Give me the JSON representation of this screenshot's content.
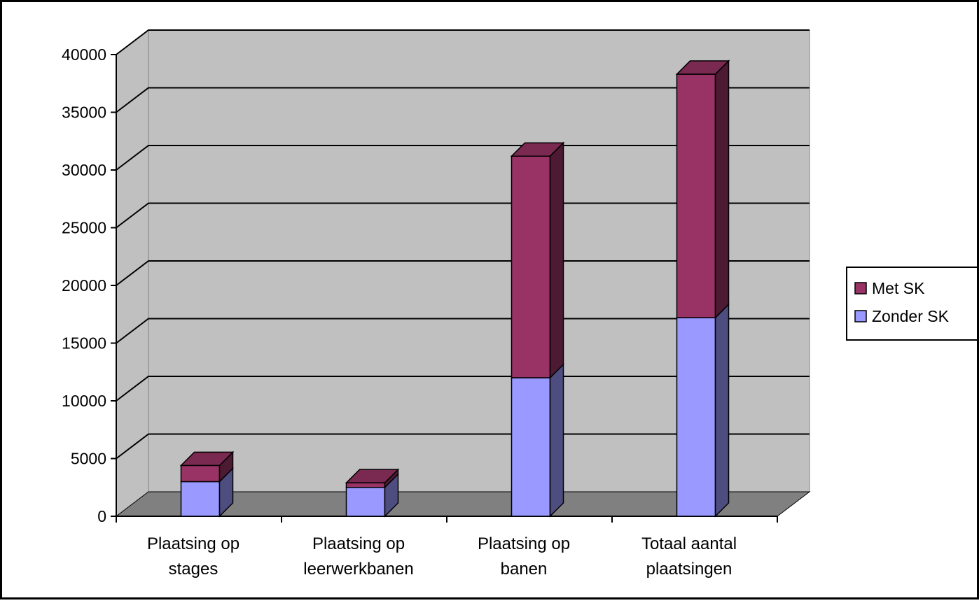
{
  "chart_data": {
    "type": "bar",
    "stacked": true,
    "three_d": true,
    "categories": [
      [
        "Plaatsing op",
        "stages"
      ],
      [
        "Plaatsing op",
        "leerwerkbanen"
      ],
      [
        "Plaatsing op",
        "banen"
      ],
      [
        "Totaal aantal",
        "plaatsingen"
      ]
    ],
    "series": [
      {
        "name": "Zonder SK",
        "values": [
          3000,
          2500,
          12000,
          17200
        ],
        "color": "#9999FF",
        "side_color": "#4D4D80",
        "top_color": "#7878C8"
      },
      {
        "name": "Met SK",
        "values": [
          1400,
          400,
          19200,
          21100
        ],
        "color": "#993366",
        "side_color": "#4D1A33",
        "top_color": "#7A2951"
      }
    ],
    "y_ticks": [
      "0",
      "5000",
      "10000",
      "15000",
      "20000",
      "25000",
      "30000",
      "35000",
      "40000"
    ],
    "ylim": [
      0,
      40000
    ],
    "title": "",
    "xlabel": "",
    "ylabel": "",
    "grid": true,
    "legend_position": "right",
    "legend_order": [
      "Met SK",
      "Zonder SK"
    ],
    "wall_color": "#C0C0C0",
    "floor_color": "#808080"
  }
}
